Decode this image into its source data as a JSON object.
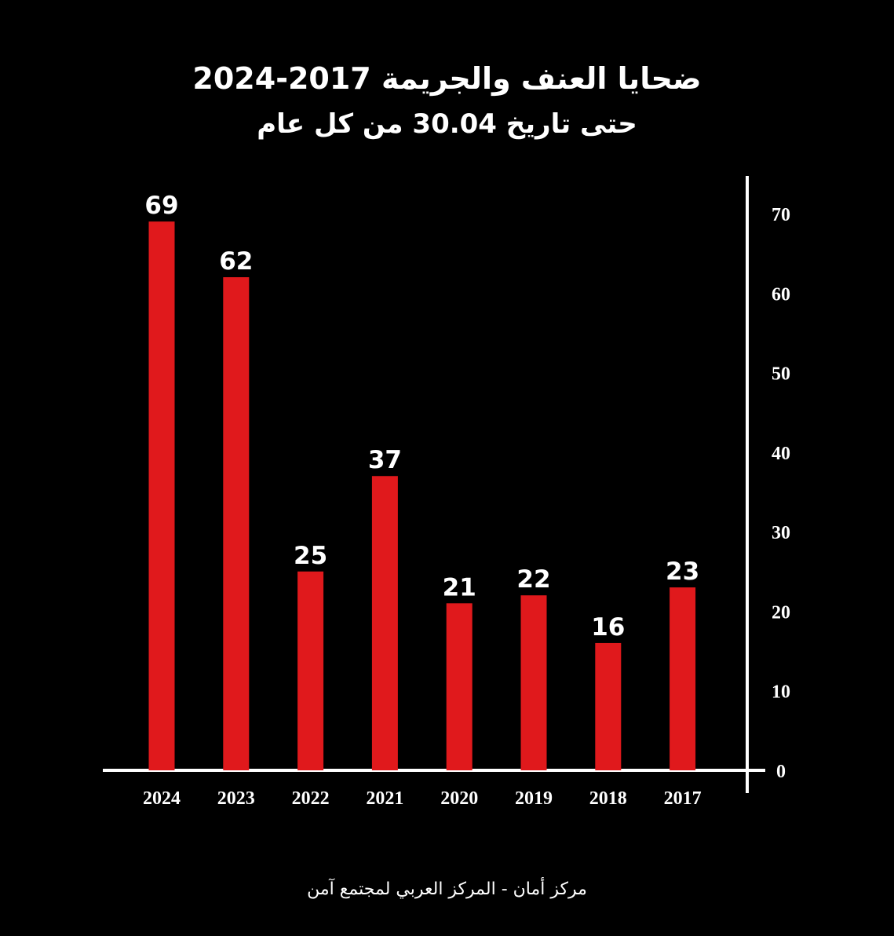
{
  "title": "ضحايا العنف والجريمة 2017-2024",
  "subtitle": "حتى تاريخ 30.04 من كل عام",
  "footer": "مركز أمان - المركز العربي لمجتمع آمن",
  "colors": {
    "background": "#000000",
    "bar": "#e0191c",
    "axis": "#ffffff",
    "text": "#ffffff"
  },
  "chart_data": {
    "type": "bar",
    "categories": [
      "2024",
      "2023",
      "2022",
      "2021",
      "2020",
      "2019",
      "2018",
      "2017"
    ],
    "values": [
      69,
      62,
      25,
      37,
      21,
      22,
      16,
      23
    ],
    "data_labels": [
      "69",
      "62",
      "25",
      "37",
      "21",
      "22",
      "16",
      "23"
    ],
    "ylim": [
      0,
      70
    ],
    "yticks": [
      0,
      10,
      20,
      30,
      40,
      50,
      60,
      70
    ],
    "y_axis_side": "right",
    "grid": false,
    "legend": false
  }
}
